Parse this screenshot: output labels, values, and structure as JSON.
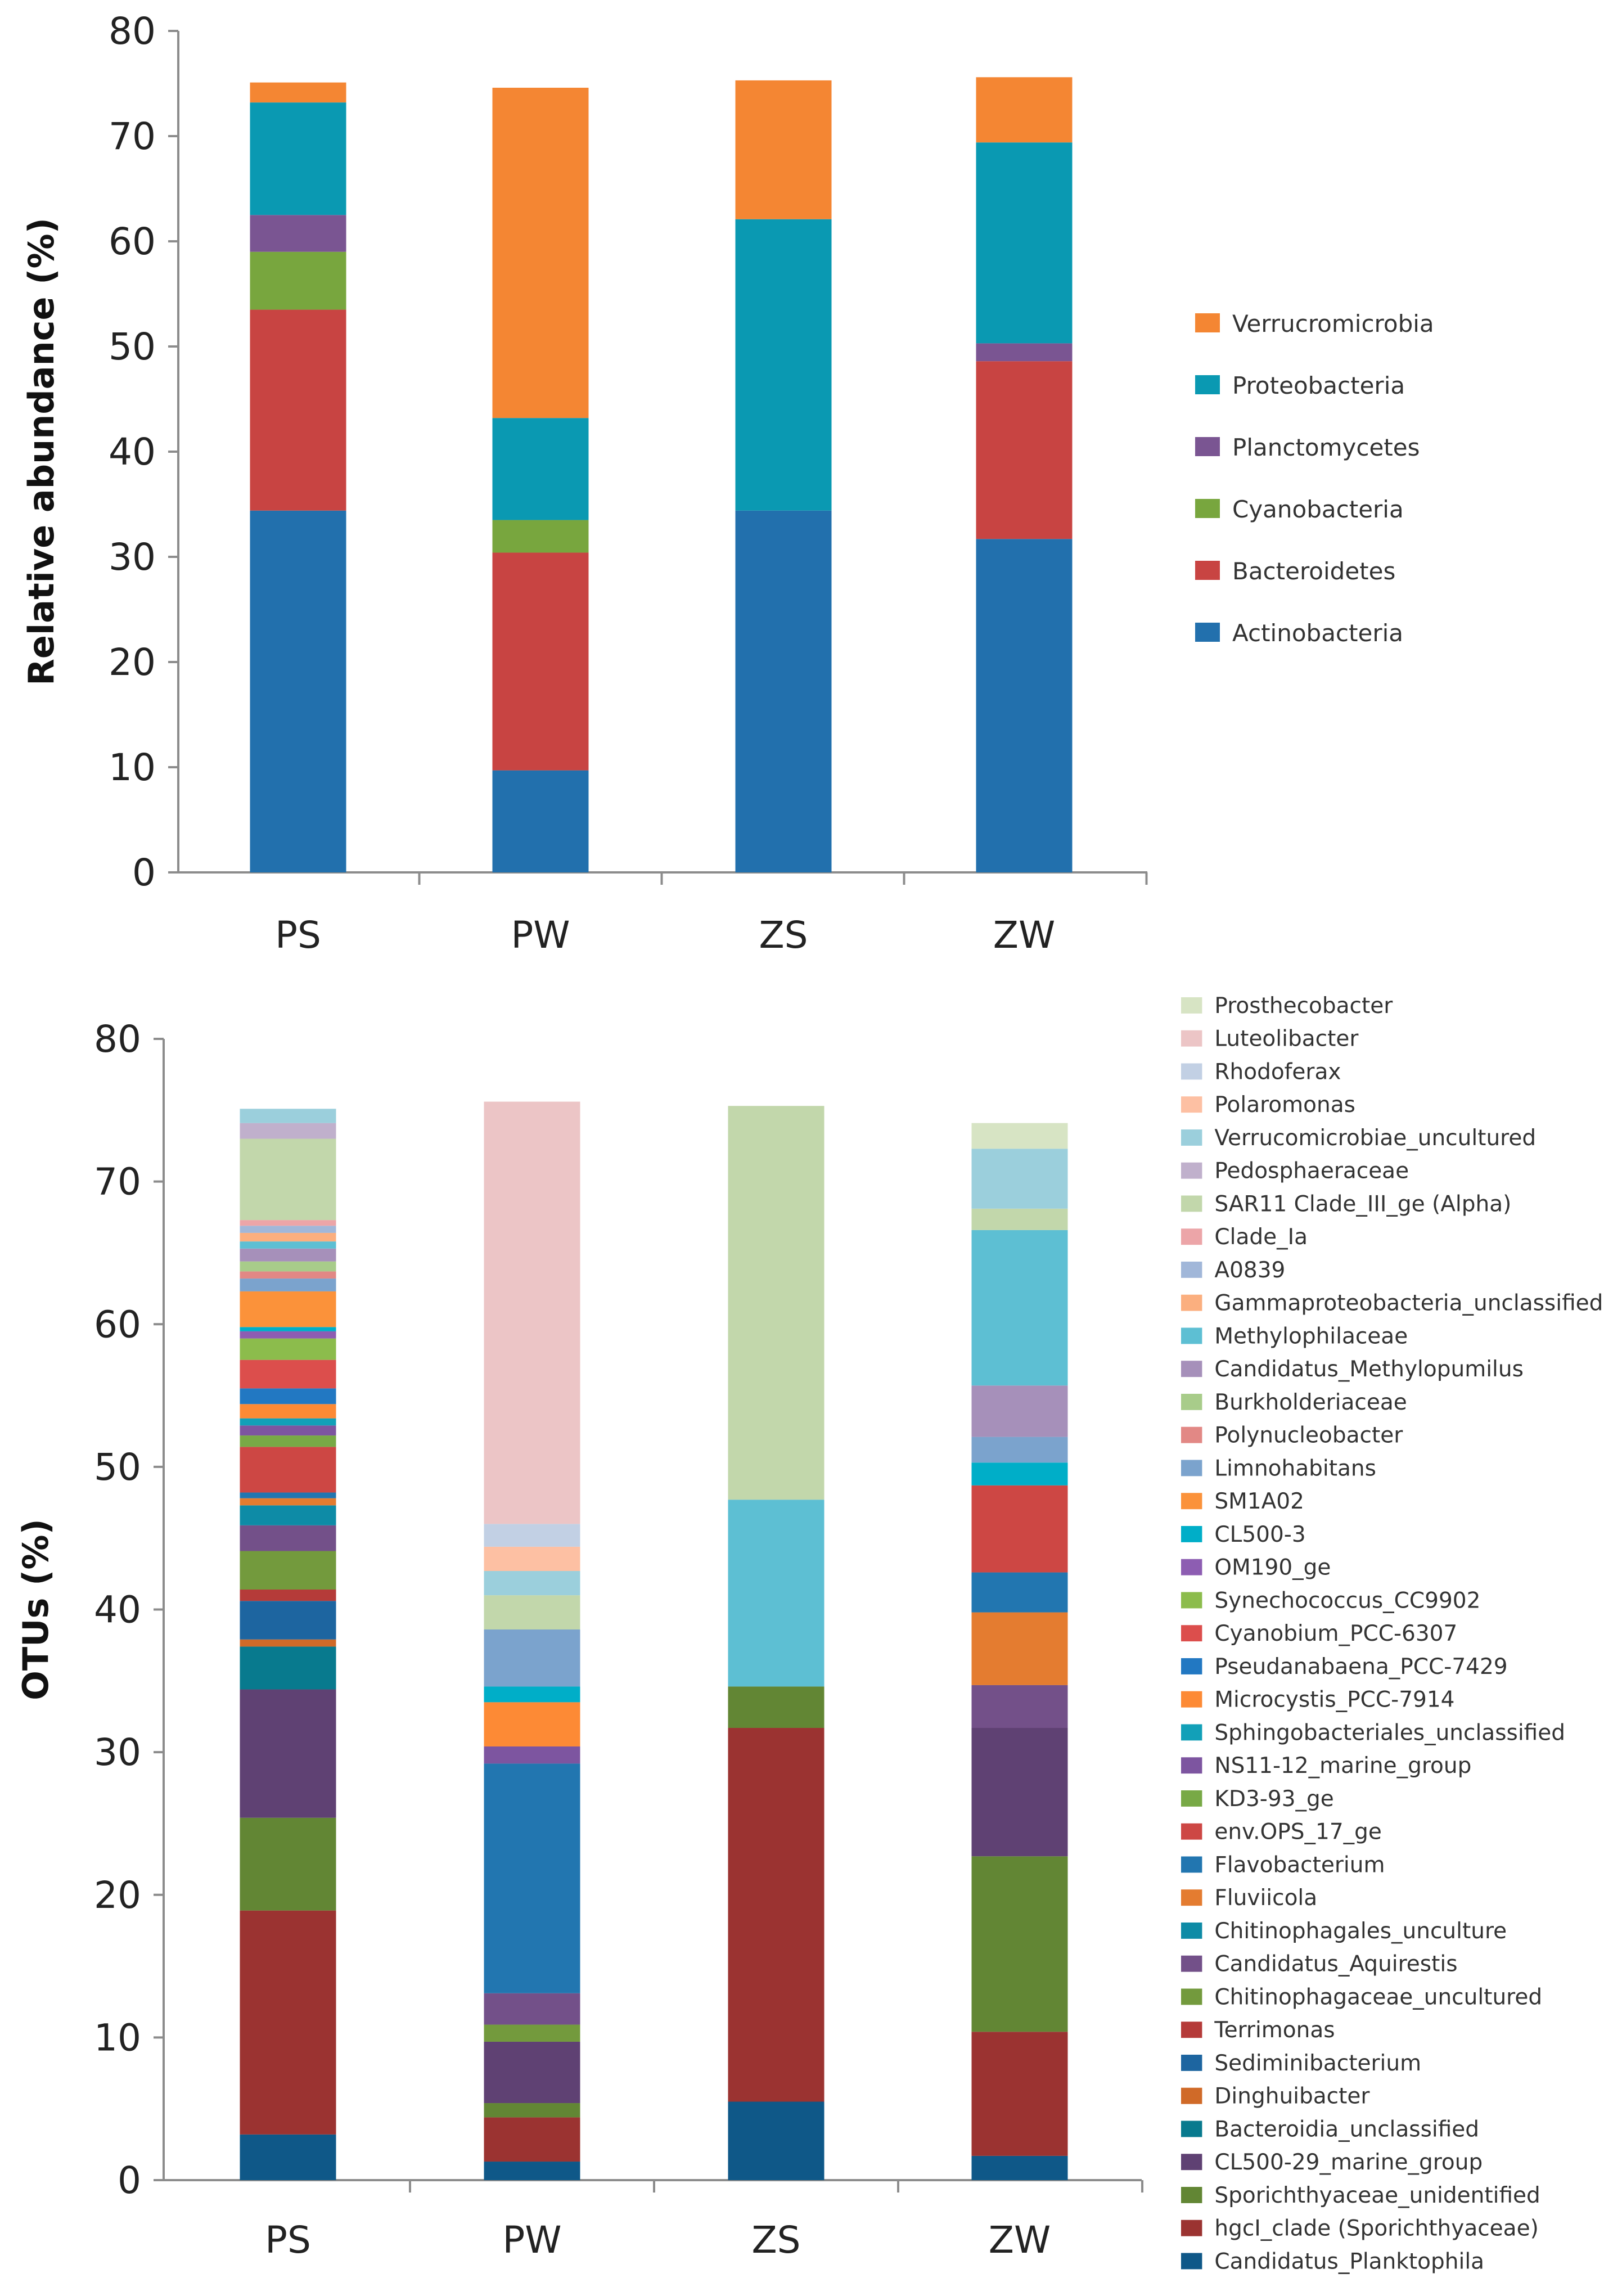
{
  "chart_data": [
    {
      "type": "bar",
      "stacked": true,
      "title": "",
      "xlabel": "",
      "ylabel": "Relative abundance (%)",
      "ylim": [
        0,
        80
      ],
      "yticks": [
        "0",
        "10",
        "20",
        "30",
        "40",
        "50",
        "60",
        "70",
        "80"
      ],
      "categories": [
        "PS",
        "PW",
        "ZS",
        "ZW"
      ],
      "legend_position": "right",
      "series": [
        {
          "name": "Actinobacteria",
          "color": "#2270ad",
          "values": [
            34.4,
            9.7,
            34.4,
            31.7
          ]
        },
        {
          "name": "Bacteroidetes",
          "color": "#c84442",
          "values": [
            19.1,
            20.7,
            0,
            16.9
          ]
        },
        {
          "name": "Cyanobacteria",
          "color": "#78a63e",
          "values": [
            5.5,
            3.1,
            0,
            0
          ]
        },
        {
          "name": "Planctomycetes",
          "color": "#7a5592",
          "values": [
            3.5,
            0,
            0,
            1.7
          ]
        },
        {
          "name": "Proteobacteria",
          "color": "#0a99b2",
          "values": [
            10.7,
            9.7,
            27.7,
            19.1
          ]
        },
        {
          "name": "Verrucromicrobia",
          "color": "#f48633",
          "values": [
            1.9,
            31.4,
            13.2,
            6.2
          ]
        }
      ]
    },
    {
      "type": "bar",
      "stacked": true,
      "title": "",
      "xlabel": "",
      "ylabel": "OTUs (%)",
      "ylim": [
        0,
        80
      ],
      "yticks": [
        "0",
        "10",
        "20",
        "30",
        "40",
        "50",
        "60",
        "70",
        "80"
      ],
      "categories": [
        "PS",
        "PW",
        "ZS",
        "ZW"
      ],
      "legend_position": "right",
      "series": [
        {
          "name": "Candidatus_Planktophila",
          "color": "#0f5888",
          "values": [
            3.2,
            1.3,
            5.5,
            1.7
          ]
        },
        {
          "name": "hgcI_clade (Sporichthyaceae)",
          "color": "#9b3331",
          "values": [
            15.7,
            3.1,
            26.2,
            8.7
          ]
        },
        {
          "name": "Sporichthyaceae_unidentified",
          "color": "#628634",
          "values": [
            6.5,
            1.0,
            2.9,
            12.3
          ]
        },
        {
          "name": "CL500-29_marine_group",
          "color": "#5f4173",
          "values": [
            9.0,
            4.3,
            0,
            9.0
          ]
        },
        {
          "name": "Bacteroidia_unclassified",
          "color": "#087a8e",
          "values": [
            3.0,
            0,
            0,
            0
          ]
        },
        {
          "name": "Dinghuibacter",
          "color": "#d06a28",
          "values": [
            0.5,
            0,
            0,
            0
          ]
        },
        {
          "name": "Sediminibacterium",
          "color": "#1d65a0",
          "values": [
            2.7,
            0,
            0,
            0
          ]
        },
        {
          "name": "Terrimonas",
          "color": "#b53b39",
          "values": [
            0.8,
            0,
            0,
            0
          ]
        },
        {
          "name": "Chitinophagaceae_uncultured",
          "color": "#739a3d",
          "values": [
            2.7,
            1.2,
            0,
            0
          ]
        },
        {
          "name": "Candidatus_Aquirestis",
          "color": "#735089",
          "values": [
            1.8,
            2.2,
            0,
            3.0
          ]
        },
        {
          "name": "Chitinophagales_unculture",
          "color": "#0e8ba6",
          "values": [
            1.4,
            0,
            0,
            0
          ]
        },
        {
          "name": "Fluviicola",
          "color": "#e47c30",
          "values": [
            0.5,
            0,
            0,
            5.1
          ]
        },
        {
          "name": "Flavobacterium",
          "color": "#2276b0",
          "values": [
            0.4,
            16.1,
            0,
            2.8
          ]
        },
        {
          "name": "env.OPS_17_ge",
          "color": "#cd4744",
          "values": [
            3.2,
            0,
            0,
            6.1
          ]
        },
        {
          "name": "KD3-93_ge",
          "color": "#78a946",
          "values": [
            0.8,
            0,
            0,
            0
          ]
        },
        {
          "name": "NS11-12_marine_group",
          "color": "#7d55a0",
          "values": [
            0.7,
            1.2,
            0,
            0
          ]
        },
        {
          "name": "Sphingobacteriales_unclassified",
          "color": "#12a0b8",
          "values": [
            0.5,
            0,
            0,
            0
          ]
        },
        {
          "name": "Microcystis_PCC-7914",
          "color": "#fd8a35",
          "values": [
            1.0,
            3.1,
            0,
            0
          ]
        },
        {
          "name": "Pseudanabaena_PCC-7429",
          "color": "#2278c2",
          "values": [
            1.1,
            0,
            0,
            0
          ]
        },
        {
          "name": "Cyanobium_PCC-6307",
          "color": "#dc4e4c",
          "values": [
            2.0,
            0,
            0,
            0
          ]
        },
        {
          "name": "Synechococcus_CC9902",
          "color": "#8cbc4c",
          "values": [
            1.5,
            0,
            0,
            0
          ]
        },
        {
          "name": "OM190_ge",
          "color": "#8d5db2",
          "values": [
            0.5,
            0,
            0,
            0
          ]
        },
        {
          "name": "CL500-3",
          "color": "#00aec8",
          "values": [
            0.3,
            1.1,
            0,
            1.6
          ]
        },
        {
          "name": "SM1A02",
          "color": "#fb923a",
          "values": [
            2.5,
            0,
            0,
            0
          ]
        },
        {
          "name": "Limnohabitans",
          "color": "#7ba3cd",
          "values": [
            0.9,
            4.0,
            0,
            1.8
          ]
        },
        {
          "name": "Polynucleobacter",
          "color": "#e28885",
          "values": [
            0.5,
            0,
            0,
            0
          ]
        },
        {
          "name": "Burkholderiaceae",
          "color": "#a8cc8a",
          "values": [
            0.7,
            0,
            0,
            0
          ]
        },
        {
          "name": "Candidatus_Methylopumilus",
          "color": "#a690ba",
          "values": [
            0.9,
            0,
            0,
            3.6
          ]
        },
        {
          "name": "Methylophilaceae",
          "color": "#5dbfd3",
          "values": [
            0.5,
            0,
            13.1,
            10.9
          ]
        },
        {
          "name": "Gammaproteobacteria_unclassified",
          "color": "#fbaf7f",
          "values": [
            0.6,
            0,
            0,
            0
          ]
        },
        {
          "name": "A0839",
          "color": "#a1b7d9",
          "values": [
            0.5,
            0,
            0,
            0
          ]
        },
        {
          "name": "Clade_Ia",
          "color": "#eca5a8",
          "values": [
            0.4,
            0,
            0,
            0
          ]
        },
        {
          "name": "SAR11 Clade_III_ge (Alpha)",
          "color": "#c2d7ab",
          "values": [
            5.7,
            2.4,
            27.6,
            1.5
          ]
        },
        {
          "name": "Pedosphaeraceae",
          "color": "#c0b0cc",
          "values": [
            1.1,
            0,
            0,
            0
          ]
        },
        {
          "name": "Verrucomicrobiae_uncultured",
          "color": "#9bcfdc",
          "values": [
            1.0,
            1.7,
            0,
            4.2
          ]
        },
        {
          "name": "Polaromonas",
          "color": "#fdc0a3",
          "values": [
            0,
            1.7,
            0,
            0
          ]
        },
        {
          "name": "Rhodoferax",
          "color": "#c2d0e4",
          "values": [
            0,
            1.6,
            0,
            0
          ]
        },
        {
          "name": "Luteolibacter",
          "color": "#ecc5c6",
          "values": [
            0,
            29.6,
            0,
            0
          ]
        },
        {
          "name": "Prosthecobacter",
          "color": "#d7e4c4",
          "values": [
            0,
            0,
            0,
            1.8
          ]
        }
      ]
    }
  ]
}
